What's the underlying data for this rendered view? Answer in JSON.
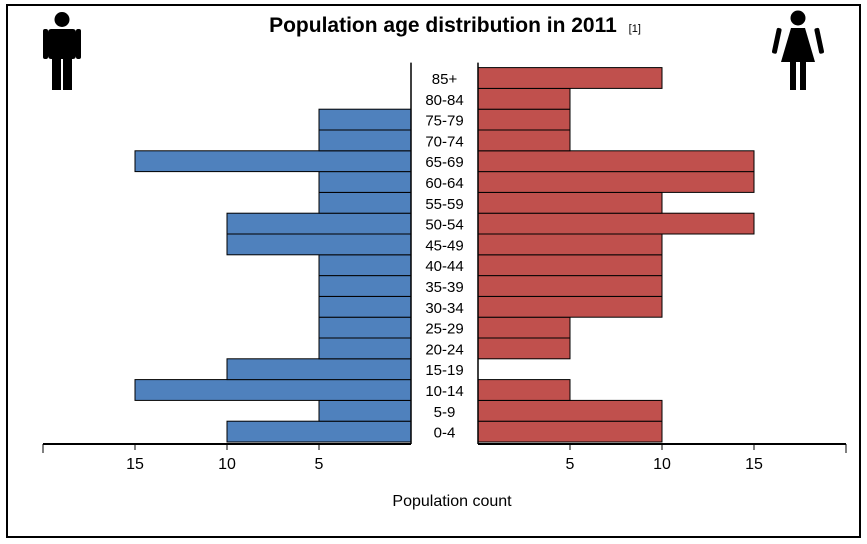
{
  "chart_data": {
    "type": "bar",
    "orientation": "horizontal-pyramid",
    "title": "Population age distribution in 2011",
    "title_note": "[1]",
    "xlabel": "Population count",
    "categories": [
      "0-4",
      "5-9",
      "10-14",
      "15-19",
      "20-24",
      "25-29",
      "30-34",
      "35-39",
      "40-44",
      "45-49",
      "50-54",
      "55-59",
      "60-64",
      "65-69",
      "70-74",
      "75-79",
      "80-84",
      "85+"
    ],
    "series": [
      {
        "values": [
          10,
          5,
          15,
          10,
          5,
          5,
          5,
          5,
          5,
          10,
          10,
          5,
          5,
          15,
          5,
          5,
          0,
          0
        ],
        "color": "#4f81bd",
        "side": "left",
        "icon": "male-figure-icon"
      },
      {
        "values": [
          10,
          10,
          5,
          0,
          5,
          5,
          10,
          10,
          10,
          10,
          15,
          10,
          15,
          15,
          5,
          5,
          5,
          10
        ],
        "color": "#c0504d",
        "side": "right",
        "icon": "female-figure-icon"
      }
    ],
    "left_ticks": [
      "15",
      "10",
      "5"
    ],
    "left_tick_values": [
      15,
      10,
      5
    ],
    "right_ticks": [
      "5",
      "10",
      "15"
    ],
    "right_tick_values": [
      5,
      10,
      15
    ],
    "xlim": [
      0,
      20
    ],
    "grid": false,
    "legend": "none"
  }
}
